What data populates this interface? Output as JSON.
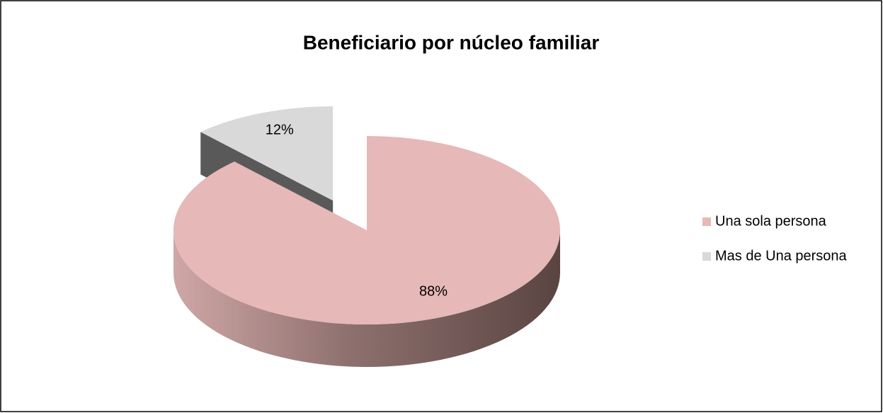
{
  "chart_data": {
    "type": "pie",
    "title": "Beneficiario por núcleo familiar",
    "categories": [
      "Una sola persona",
      "Mas de Una persona"
    ],
    "values": [
      88,
      12
    ],
    "value_labels": [
      "88%",
      "12%"
    ],
    "colors": [
      "#e6b8b7",
      "#d9d9d9"
    ],
    "legend": "right"
  }
}
